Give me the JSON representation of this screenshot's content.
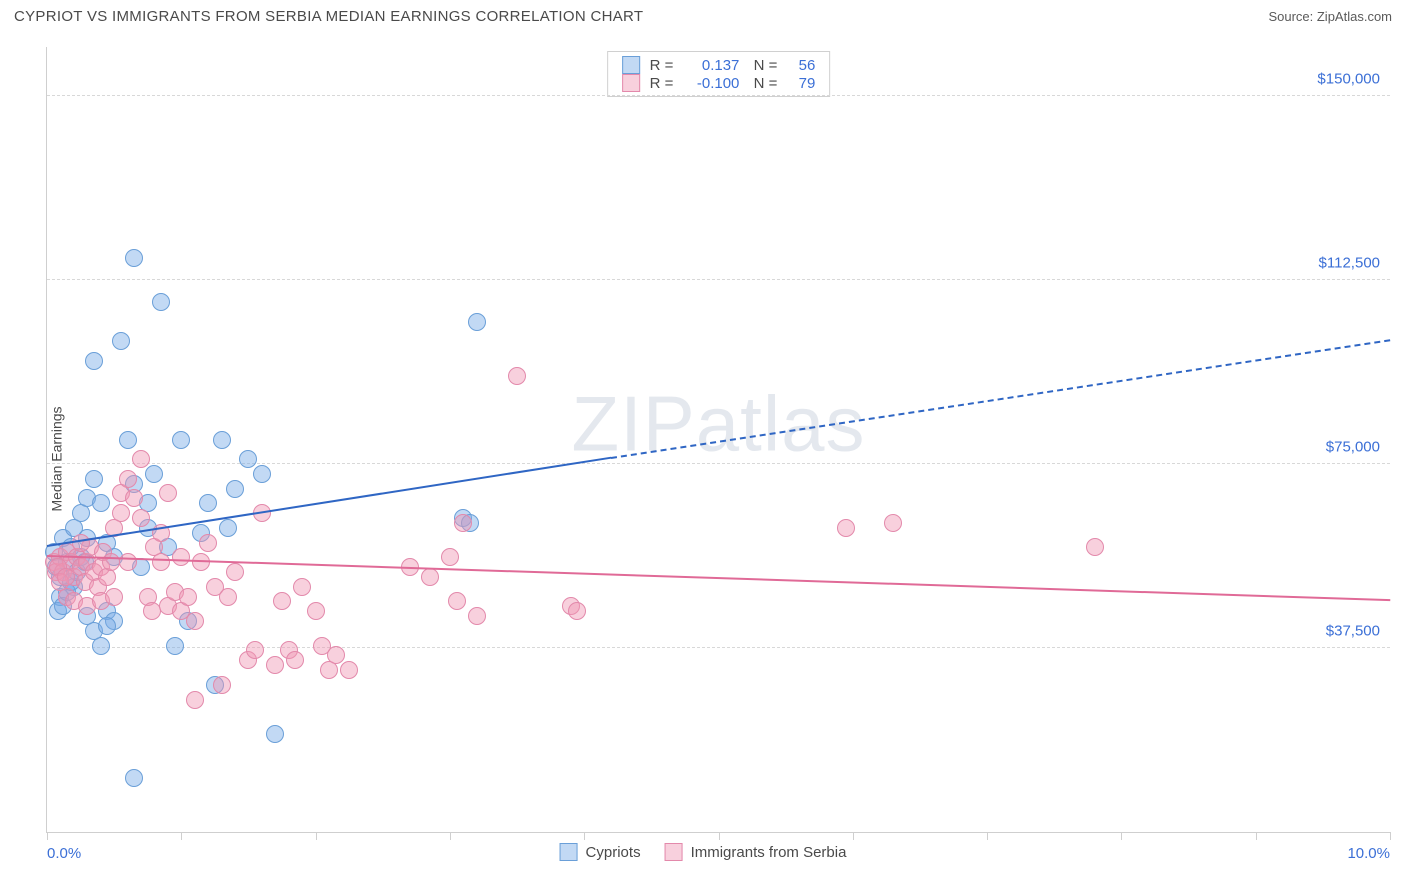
{
  "header": {
    "title": "CYPRIOT VS IMMIGRANTS FROM SERBIA MEDIAN EARNINGS CORRELATION CHART",
    "source": "Source: ZipAtlas.com"
  },
  "watermark": {
    "bold": "ZIP",
    "thin": "atlas"
  },
  "chart": {
    "type": "scatter",
    "ylabel": "Median Earnings",
    "xlim": [
      0,
      10
    ],
    "ylim": [
      0,
      160000
    ],
    "xtick_labels": {
      "start": "0.0%",
      "end": "10.0%"
    },
    "xtick_positions": [
      0,
      1,
      2,
      3,
      4,
      5,
      6,
      7,
      8,
      9,
      10
    ],
    "ytick_labels": [
      {
        "value": 37500,
        "label": "$37,500"
      },
      {
        "value": 75000,
        "label": "$75,000"
      },
      {
        "value": 112500,
        "label": "$112,500"
      },
      {
        "value": 150000,
        "label": "$150,000"
      }
    ],
    "background_color": "#ffffff",
    "grid_color": "#d8d8d8",
    "axis_color": "#cfcfcf",
    "point_radius": 9,
    "point_stroke_width": 1.5,
    "series": [
      {
        "name": "Cypriots",
        "color_fill": "rgba(120,170,230,0.45)",
        "color_stroke": "#6a9fd8",
        "trend_color": "#2f66c4",
        "R": "0.137",
        "N": "56",
        "trend": {
          "x1": 0,
          "y1": 58000,
          "x2_solid": 4.2,
          "y2_solid": 76000,
          "x2": 10,
          "y2": 100000
        },
        "points": [
          [
            0.05,
            57000
          ],
          [
            0.07,
            54000
          ],
          [
            0.1,
            52000
          ],
          [
            0.12,
            60000
          ],
          [
            0.1,
            48000
          ],
          [
            0.15,
            55000
          ],
          [
            0.18,
            58000
          ],
          [
            0.2,
            50000
          ],
          [
            0.2,
            62000
          ],
          [
            0.25,
            56000
          ],
          [
            0.25,
            65000
          ],
          [
            0.3,
            60000
          ],
          [
            0.3,
            68000
          ],
          [
            0.35,
            72000
          ],
          [
            0.3,
            44000
          ],
          [
            0.35,
            41000
          ],
          [
            0.4,
            38000
          ],
          [
            0.45,
            45000
          ],
          [
            0.5,
            43000
          ],
          [
            0.35,
            96000
          ],
          [
            0.55,
            100000
          ],
          [
            0.6,
            80000
          ],
          [
            0.65,
            71000
          ],
          [
            0.7,
            54000
          ],
          [
            0.75,
            62000
          ],
          [
            0.75,
            67000
          ],
          [
            0.8,
            73000
          ],
          [
            0.65,
            117000
          ],
          [
            0.85,
            108000
          ],
          [
            0.9,
            58000
          ],
          [
            0.95,
            38000
          ],
          [
            1.0,
            80000
          ],
          [
            1.05,
            43000
          ],
          [
            0.65,
            11000
          ],
          [
            1.15,
            61000
          ],
          [
            1.2,
            67000
          ],
          [
            1.25,
            30000
          ],
          [
            1.3,
            80000
          ],
          [
            1.35,
            62000
          ],
          [
            1.4,
            70000
          ],
          [
            1.5,
            76000
          ],
          [
            1.6,
            73000
          ],
          [
            1.7,
            20000
          ],
          [
            0.45,
            42000
          ],
          [
            3.1,
            64000
          ],
          [
            3.15,
            63000
          ],
          [
            3.2,
            104000
          ],
          [
            0.08,
            45000
          ],
          [
            0.12,
            46000
          ],
          [
            0.15,
            49000
          ],
          [
            0.18,
            51000
          ],
          [
            0.22,
            53000
          ],
          [
            0.28,
            55000
          ],
          [
            0.5,
            56000
          ],
          [
            0.4,
            67000
          ],
          [
            0.45,
            59000
          ]
        ]
      },
      {
        "name": "Immigrants from Serbia",
        "color_fill": "rgba(240,150,180,0.45)",
        "color_stroke": "#e389ab",
        "trend_color": "#e06a97",
        "R": "-0.100",
        "N": "79",
        "trend": {
          "x1": 0,
          "y1": 56000,
          "x2_solid": 10,
          "y2_solid": 47000,
          "x2": 10,
          "y2": 47000
        },
        "points": [
          [
            0.05,
            55000
          ],
          [
            0.07,
            53000
          ],
          [
            0.1,
            56000
          ],
          [
            0.12,
            53000
          ],
          [
            0.15,
            57000
          ],
          [
            0.18,
            55000
          ],
          [
            0.2,
            52000
          ],
          [
            0.22,
            56000
          ],
          [
            0.25,
            54000
          ],
          [
            0.28,
            51000
          ],
          [
            0.3,
            55000
          ],
          [
            0.32,
            58000
          ],
          [
            0.35,
            53000
          ],
          [
            0.38,
            50000
          ],
          [
            0.4,
            54000
          ],
          [
            0.42,
            57000
          ],
          [
            0.45,
            52000
          ],
          [
            0.48,
            55000
          ],
          [
            0.5,
            62000
          ],
          [
            0.55,
            65000
          ],
          [
            0.55,
            69000
          ],
          [
            0.6,
            72000
          ],
          [
            0.6,
            55000
          ],
          [
            0.65,
            68000
          ],
          [
            0.7,
            64000
          ],
          [
            0.7,
            76000
          ],
          [
            0.75,
            48000
          ],
          [
            0.78,
            45000
          ],
          [
            0.8,
            58000
          ],
          [
            0.85,
            55000
          ],
          [
            0.85,
            61000
          ],
          [
            0.9,
            46000
          ],
          [
            0.9,
            69000
          ],
          [
            0.95,
            49000
          ],
          [
            1.0,
            45000
          ],
          [
            1.0,
            56000
          ],
          [
            1.05,
            48000
          ],
          [
            1.1,
            43000
          ],
          [
            1.1,
            27000
          ],
          [
            1.15,
            55000
          ],
          [
            1.2,
            59000
          ],
          [
            1.25,
            50000
          ],
          [
            1.3,
            30000
          ],
          [
            1.35,
            48000
          ],
          [
            1.4,
            53000
          ],
          [
            1.5,
            35000
          ],
          [
            1.55,
            37000
          ],
          [
            1.6,
            65000
          ],
          [
            1.7,
            34000
          ],
          [
            1.75,
            47000
          ],
          [
            1.8,
            37000
          ],
          [
            1.85,
            35000
          ],
          [
            1.9,
            50000
          ],
          [
            2.0,
            45000
          ],
          [
            2.05,
            38000
          ],
          [
            2.1,
            33000
          ],
          [
            2.15,
            36000
          ],
          [
            2.25,
            33000
          ],
          [
            2.7,
            54000
          ],
          [
            2.85,
            52000
          ],
          [
            3.0,
            56000
          ],
          [
            3.05,
            47000
          ],
          [
            3.1,
            63000
          ],
          [
            3.2,
            44000
          ],
          [
            3.5,
            93000
          ],
          [
            3.9,
            46000
          ],
          [
            3.95,
            45000
          ],
          [
            5.95,
            62000
          ],
          [
            6.3,
            63000
          ],
          [
            7.8,
            58000
          ],
          [
            0.15,
            48000
          ],
          [
            0.2,
            47000
          ],
          [
            0.3,
            46000
          ],
          [
            0.4,
            47000
          ],
          [
            0.5,
            48000
          ],
          [
            0.08,
            54000
          ],
          [
            0.1,
            51000
          ],
          [
            0.14,
            52000
          ],
          [
            0.25,
            59000
          ]
        ]
      }
    ]
  }
}
